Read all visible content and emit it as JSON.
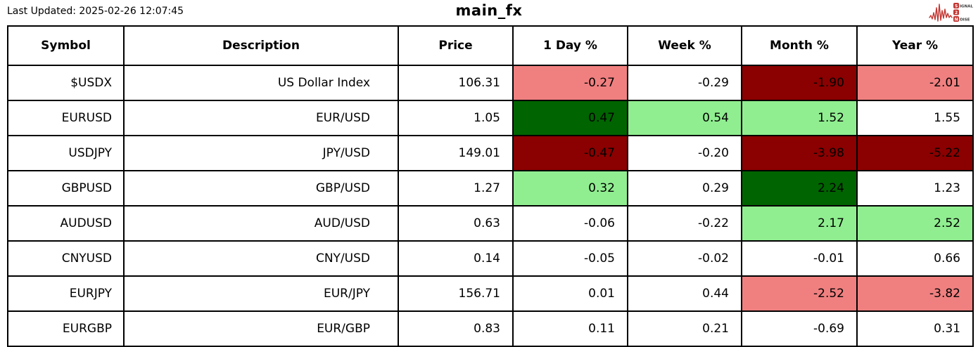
{
  "header": {
    "last_updated": "Last Updated: 2025-02-26 12:07:45",
    "title": "main_fx",
    "logo": {
      "word1_initial": "S",
      "word1_rest": "IGNAL",
      "word2": "2",
      "word3_initial": "N",
      "word3_rest": "OISE",
      "accent_color": "#c23531"
    }
  },
  "colors": {
    "strong_negative": "#8B0000",
    "negative": "#F08080",
    "positive": "#90EE90",
    "strong_positive": "#006400",
    "neutral": "#FFFFFF",
    "border": "#000000"
  },
  "chart_data": {
    "type": "table",
    "title": "main_fx",
    "columns": [
      "Symbol",
      "Description",
      "Price",
      "1 Day %",
      "Week %",
      "Month %",
      "Year %"
    ],
    "rows": [
      {
        "symbol": "$USDX",
        "description": "US Dollar Index",
        "price": "106.31",
        "day": {
          "value": "-0.27",
          "color": "#F08080"
        },
        "week": {
          "value": "-0.29",
          "color": "#FFFFFF"
        },
        "month": {
          "value": "-1.90",
          "color": "#8B0000"
        },
        "year": {
          "value": "-2.01",
          "color": "#F08080"
        }
      },
      {
        "symbol": "EURUSD",
        "description": "EUR/USD",
        "price": "1.05",
        "day": {
          "value": "0.47",
          "color": "#006400"
        },
        "week": {
          "value": "0.54",
          "color": "#90EE90"
        },
        "month": {
          "value": "1.52",
          "color": "#90EE90"
        },
        "year": {
          "value": "1.55",
          "color": "#FFFFFF"
        }
      },
      {
        "symbol": "USDJPY",
        "description": "JPY/USD",
        "price": "149.01",
        "day": {
          "value": "-0.47",
          "color": "#8B0000"
        },
        "week": {
          "value": "-0.20",
          "color": "#FFFFFF"
        },
        "month": {
          "value": "-3.98",
          "color": "#8B0000"
        },
        "year": {
          "value": "-5.22",
          "color": "#8B0000"
        }
      },
      {
        "symbol": "GBPUSD",
        "description": "GBP/USD",
        "price": "1.27",
        "day": {
          "value": "0.32",
          "color": "#90EE90"
        },
        "week": {
          "value": "0.29",
          "color": "#FFFFFF"
        },
        "month": {
          "value": "2.24",
          "color": "#006400"
        },
        "year": {
          "value": "1.23",
          "color": "#FFFFFF"
        }
      },
      {
        "symbol": "AUDUSD",
        "description": "AUD/USD",
        "price": "0.63",
        "day": {
          "value": "-0.06",
          "color": "#FFFFFF"
        },
        "week": {
          "value": "-0.22",
          "color": "#FFFFFF"
        },
        "month": {
          "value": "2.17",
          "color": "#90EE90"
        },
        "year": {
          "value": "2.52",
          "color": "#90EE90"
        }
      },
      {
        "symbol": "CNYUSD",
        "description": "CNY/USD",
        "price": "0.14",
        "day": {
          "value": "-0.05",
          "color": "#FFFFFF"
        },
        "week": {
          "value": "-0.02",
          "color": "#FFFFFF"
        },
        "month": {
          "value": "-0.01",
          "color": "#FFFFFF"
        },
        "year": {
          "value": "0.66",
          "color": "#FFFFFF"
        }
      },
      {
        "symbol": "EURJPY",
        "description": "EUR/JPY",
        "price": "156.71",
        "day": {
          "value": "0.01",
          "color": "#FFFFFF"
        },
        "week": {
          "value": "0.44",
          "color": "#FFFFFF"
        },
        "month": {
          "value": "-2.52",
          "color": "#F08080"
        },
        "year": {
          "value": "-3.82",
          "color": "#F08080"
        }
      },
      {
        "symbol": "EURGBP",
        "description": "EUR/GBP",
        "price": "0.83",
        "day": {
          "value": "0.11",
          "color": "#FFFFFF"
        },
        "week": {
          "value": "0.21",
          "color": "#FFFFFF"
        },
        "month": {
          "value": "-0.69",
          "color": "#FFFFFF"
        },
        "year": {
          "value": "0.31",
          "color": "#FFFFFF"
        }
      }
    ]
  }
}
